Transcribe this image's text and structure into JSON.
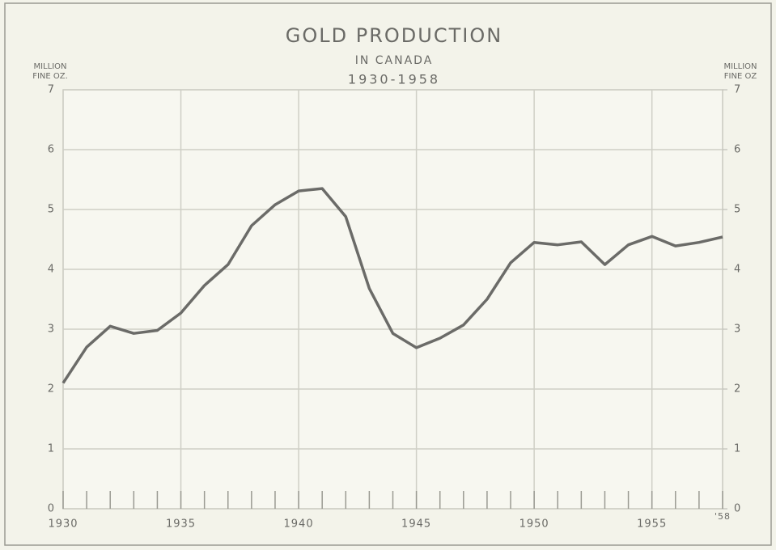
{
  "chart_data": {
    "type": "line",
    "title": "GOLD PRODUCTION",
    "subtitle": "IN CANADA",
    "period": "1930-1958",
    "y_label": [
      "MILLION",
      "FINE OZ."
    ],
    "y2_label": [
      "MILLION",
      "FINE OZ"
    ],
    "x": [
      1930,
      1931,
      1932,
      1933,
      1934,
      1935,
      1936,
      1937,
      1938,
      1939,
      1940,
      1941,
      1942,
      1943,
      1944,
      1945,
      1946,
      1947,
      1948,
      1949,
      1950,
      1951,
      1952,
      1953,
      1954,
      1955,
      1956,
      1957,
      1958
    ],
    "series": [
      {
        "name": "Gold production",
        "color": "#6b6b68",
        "values": [
          2.1,
          2.7,
          3.05,
          2.93,
          2.98,
          3.27,
          3.73,
          4.08,
          4.73,
          5.08,
          5.31,
          5.35,
          4.88,
          3.68,
          2.93,
          2.69,
          2.85,
          3.07,
          3.5,
          4.11,
          4.45,
          4.41,
          4.46,
          4.08,
          4.41,
          4.55,
          4.39,
          4.45,
          4.54
        ]
      }
    ],
    "xlim": [
      1930,
      1958
    ],
    "xticks": [
      1930,
      1935,
      1940,
      1945,
      1950,
      1955,
      {
        "value": 1958,
        "label": "'58"
      }
    ],
    "ylim": [
      0,
      7
    ],
    "yticks": [
      0,
      1,
      2,
      3,
      4,
      5,
      6,
      7
    ],
    "y2lim": [
      0,
      7
    ],
    "y2ticks": [
      0,
      1,
      2,
      3,
      4,
      5,
      6,
      7
    ],
    "grid": true
  }
}
